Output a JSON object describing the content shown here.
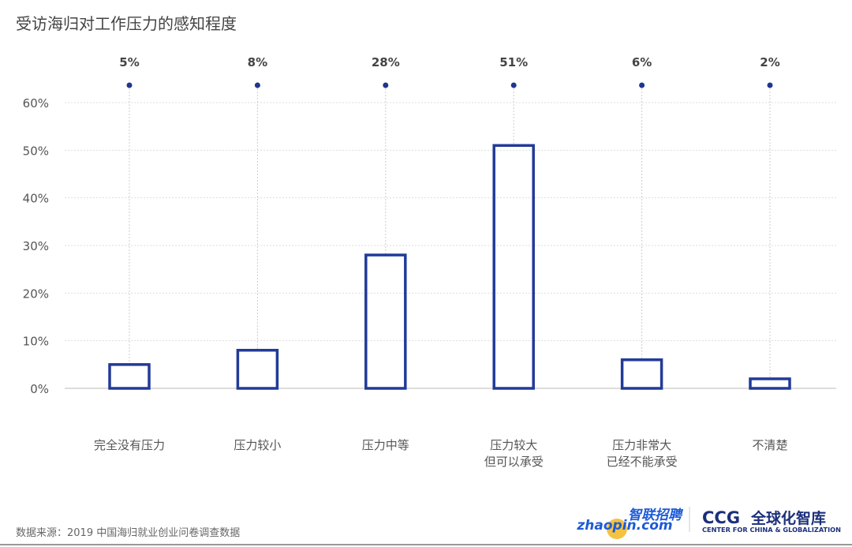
{
  "chart_data": {
    "type": "bar",
    "title": "受访海归对工作压力的感知程度",
    "categories": [
      "完全没有压力",
      "压力较小",
      "压力中等",
      "压力较大\n但可以承受",
      "压力非常大\n已经不能承受",
      "不清楚"
    ],
    "values": [
      5,
      8,
      28,
      51,
      6,
      2
    ],
    "data_labels": [
      "5%",
      "8%",
      "28%",
      "51%",
      "6%",
      "2%"
    ],
    "ylim": [
      0,
      60
    ],
    "yticks": [
      "0%",
      "10%",
      "20%",
      "30%",
      "40%",
      "50%",
      "60%"
    ],
    "grid": true,
    "bar_style": "outline",
    "colors": {
      "bar": "#223a98",
      "dot": "#1f3592",
      "grid": "#dddddd"
    }
  },
  "source": "数据来源：2019 中国海归就业创业问卷调查数据",
  "logos": {
    "zhaopin_cn": "智联招聘",
    "zhaopin_en": "zhaopin.com",
    "ccg": "CCG",
    "ccg_cn": "全球化智库",
    "ccg_en": "CENTER FOR CHINA & GLOBALIZATION"
  }
}
